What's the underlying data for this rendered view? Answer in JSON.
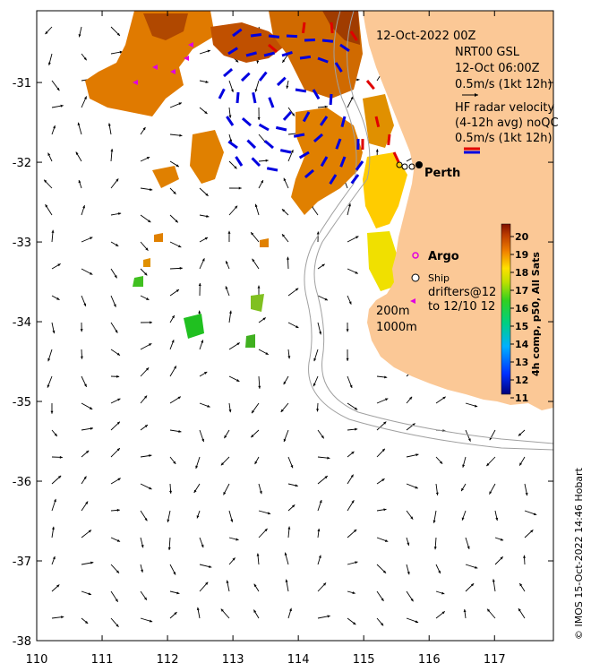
{
  "map": {
    "lon_range": [
      110,
      118
    ],
    "lat_range": [
      -38,
      -30
    ],
    "x_ticks": [
      "110",
      "111",
      "112",
      "113",
      "114",
      "115",
      "116",
      "117"
    ],
    "y_ticks": [
      "-31",
      "-32",
      "-33",
      "-34",
      "-35",
      "-36",
      "-37",
      "-38"
    ],
    "land_color": "#fbc896",
    "ocean_color": "#ffffff"
  },
  "header": {
    "date": "12-Oct-2022 00Z",
    "model": "NRT00 GSL",
    "model_time": "12-Oct 06:00Z",
    "model_scale": "0.5m/s (1kt 12h)",
    "hf_title_1": "HF radar velocity",
    "hf_title_2": "(4-12h avg) noQC",
    "hf_scale": "0.5m/s (1kt 12h)"
  },
  "labels": {
    "perth": "Perth",
    "argo": "Argo",
    "ship": "Ship",
    "drifters_1": "drifters@12",
    "drifters_2": "to 12/10 12",
    "isobath_200": "200m",
    "isobath_1000": "1000m"
  },
  "colorbar": {
    "title": "4h comp, p50, All Sats",
    "ticks": [
      "20",
      "19",
      "18",
      "17",
      "16",
      "15",
      "14",
      "13",
      "12",
      "11"
    ],
    "range": [
      11,
      20
    ]
  },
  "credit": "© IMOS 15-Oct-2022 14:46 Hobart",
  "colors": {
    "hf_red": "#e00000",
    "hf_blue": "#0000e0",
    "argo": "#e000e0",
    "sst_hot": "#a03c00",
    "sst_warm": "#e07a00",
    "sst_yellow": "#ffd800",
    "sst_green": "#20c020"
  }
}
